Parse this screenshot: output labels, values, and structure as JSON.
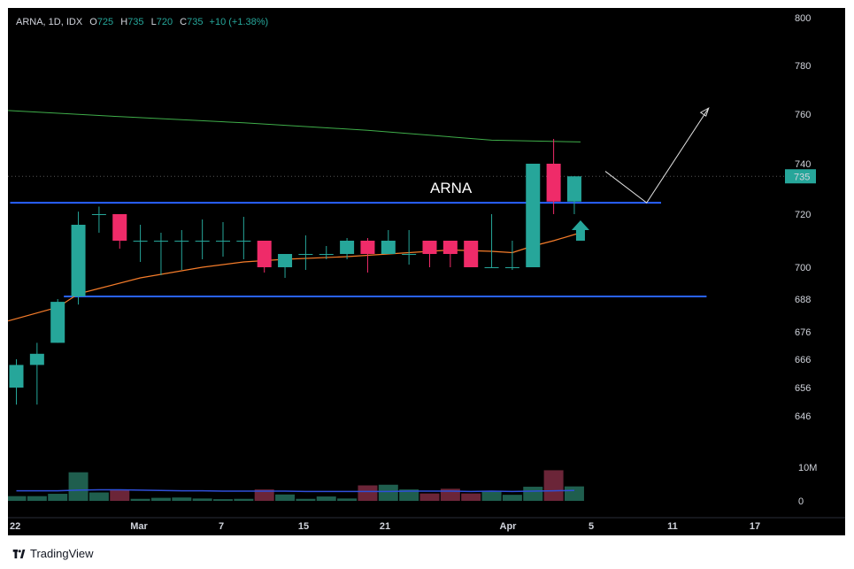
{
  "legend": {
    "symbol": "ARNA, 1D, IDX",
    "o_label": "O",
    "o": "725",
    "h_label": "H",
    "h": "735",
    "l_label": "L",
    "l": "720",
    "c_label": "C",
    "c": "735",
    "change": "+10 (+1.38%)"
  },
  "annotation_text": "ARNA",
  "footer": {
    "brand": "TradingView",
    "logo_icon": "tradingview-logo-icon"
  },
  "colors": {
    "up": "#26a69a",
    "down": "#ef2b69",
    "level_line": "#2962ff",
    "ma_long": "#3fae4a",
    "ma_short": "#f57c2a",
    "volume_ma": "#2f4fd9",
    "background": "#000000"
  },
  "chart_data": {
    "type": "candlestick",
    "symbol": "ARNA",
    "interval": "1D",
    "exchange": "IDX",
    "y_ticks": [
      "800",
      "780",
      "760",
      "740",
      "720",
      "700",
      "688",
      "676",
      "666",
      "656",
      "646"
    ],
    "x_ticks": [
      "22",
      "Mar",
      "7",
      "15",
      "21",
      "Apr",
      "5",
      "11",
      "17"
    ],
    "last_price_label": "735",
    "volume_ticks": [
      "10M",
      "0"
    ],
    "candles": [
      {
        "o": 656,
        "h": 666,
        "l": 650,
        "c": 664
      },
      {
        "o": 664,
        "h": 672,
        "l": 650,
        "c": 668
      },
      {
        "o": 672,
        "h": 688,
        "l": 672,
        "c": 687
      },
      {
        "o": 689,
        "h": 721,
        "l": 686,
        "c": 716
      },
      {
        "o": 720,
        "h": 723,
        "l": 713,
        "c": 720
      },
      {
        "o": 720,
        "h": 720,
        "l": 707,
        "c": 710
      },
      {
        "o": 710,
        "h": 716,
        "l": 702,
        "c": 710
      },
      {
        "o": 710,
        "h": 713,
        "l": 697,
        "c": 710
      },
      {
        "o": 710,
        "h": 714,
        "l": 699,
        "c": 710
      },
      {
        "o": 710,
        "h": 718,
        "l": 703,
        "c": 710
      },
      {
        "o": 710,
        "h": 717,
        "l": 704,
        "c": 710
      },
      {
        "o": 710,
        "h": 719,
        "l": 703,
        "c": 710
      },
      {
        "o": 710,
        "h": 710,
        "l": 698,
        "c": 700
      },
      {
        "o": 700,
        "h": 705,
        "l": 696,
        "c": 705
      },
      {
        "o": 705,
        "h": 712,
        "l": 699,
        "c": 705
      },
      {
        "o": 705,
        "h": 708,
        "l": 703,
        "c": 705
      },
      {
        "o": 705,
        "h": 711,
        "l": 703,
        "c": 710
      },
      {
        "o": 710,
        "h": 711,
        "l": 698,
        "c": 705
      },
      {
        "o": 705,
        "h": 714,
        "l": 705,
        "c": 710
      },
      {
        "o": 705,
        "h": 714,
        "l": 701,
        "c": 705
      },
      {
        "o": 710,
        "h": 710,
        "l": 700,
        "c": 705
      },
      {
        "o": 710,
        "h": 710,
        "l": 700,
        "c": 705
      },
      {
        "o": 710,
        "h": 710,
        "l": 700,
        "c": 700
      },
      {
        "o": 700,
        "h": 720,
        "l": 700,
        "c": 700
      },
      {
        "o": 700,
        "h": 710,
        "l": 699,
        "c": 700
      },
      {
        "o": 700,
        "h": 740,
        "l": 700,
        "c": 740
      },
      {
        "o": 740,
        "h": 750,
        "l": 720,
        "c": 725
      },
      {
        "o": 725,
        "h": 735,
        "l": 720,
        "c": 735
      }
    ],
    "volume_millions": [
      1.4,
      1.4,
      2.1,
      8.5,
      2.5,
      3.2,
      0.6,
      0.9,
      1.0,
      0.7,
      0.5,
      0.6,
      3.4,
      1.9,
      0.6,
      1.3,
      0.7,
      4.6,
      4.8,
      3.4,
      2.2,
      3.6,
      2.2,
      2.8,
      1.8,
      4.2,
      9.1,
      4.3
    ],
    "volume_up": [
      true,
      true,
      true,
      true,
      true,
      false,
      true,
      true,
      true,
      true,
      true,
      true,
      false,
      true,
      true,
      true,
      true,
      false,
      true,
      true,
      false,
      false,
      false,
      true,
      true,
      true,
      false,
      true
    ],
    "volume_ma_millions": [
      3.0,
      3.0,
      3.0,
      3.2,
      3.3,
      3.3,
      3.2,
      3.1,
      3.0,
      3.0,
      2.9,
      2.9,
      2.9,
      2.9,
      2.8,
      2.8,
      2.8,
      2.8,
      2.8,
      2.9,
      2.9,
      2.9,
      2.8,
      2.9,
      2.8,
      2.9,
      3.0,
      3.1
    ],
    "ma_long": [
      {
        "i": -0.4,
        "v": 761.5
      },
      {
        "i": 5,
        "v": 759
      },
      {
        "i": 11,
        "v": 756.5
      },
      {
        "i": 17,
        "v": 753.5
      },
      {
        "i": 23,
        "v": 749.5
      },
      {
        "i": 27.3,
        "v": 748.8
      }
    ],
    "ma_short": [
      {
        "i": -0.4,
        "v": 680
      },
      {
        "i": 2,
        "v": 685
      },
      {
        "i": 3,
        "v": 690
      },
      {
        "i": 4,
        "v": 692
      },
      {
        "i": 6,
        "v": 696
      },
      {
        "i": 9,
        "v": 700
      },
      {
        "i": 11,
        "v": 702
      },
      {
        "i": 13,
        "v": 703
      },
      {
        "i": 16,
        "v": 704
      },
      {
        "i": 19,
        "v": 705.5
      },
      {
        "i": 21,
        "v": 706.5
      },
      {
        "i": 23,
        "v": 706
      },
      {
        "i": 24,
        "v": 705.5
      },
      {
        "i": 25,
        "v": 708
      },
      {
        "i": 26,
        "v": 710
      },
      {
        "i": 27.3,
        "v": 713
      }
    ],
    "levels": [
      {
        "value": 724.5,
        "i0": -0.3,
        "i1": 31.2
      },
      {
        "value": 689,
        "i0": 2.3,
        "i1": 33.4
      }
    ],
    "projection_path": [
      {
        "i": 28.5,
        "v": 737
      },
      {
        "i": 30.5,
        "v": 724.5
      },
      {
        "i": 33.5,
        "v": 762.5
      }
    ],
    "arrow_marker": {
      "i": 27.3,
      "v": 711
    }
  }
}
